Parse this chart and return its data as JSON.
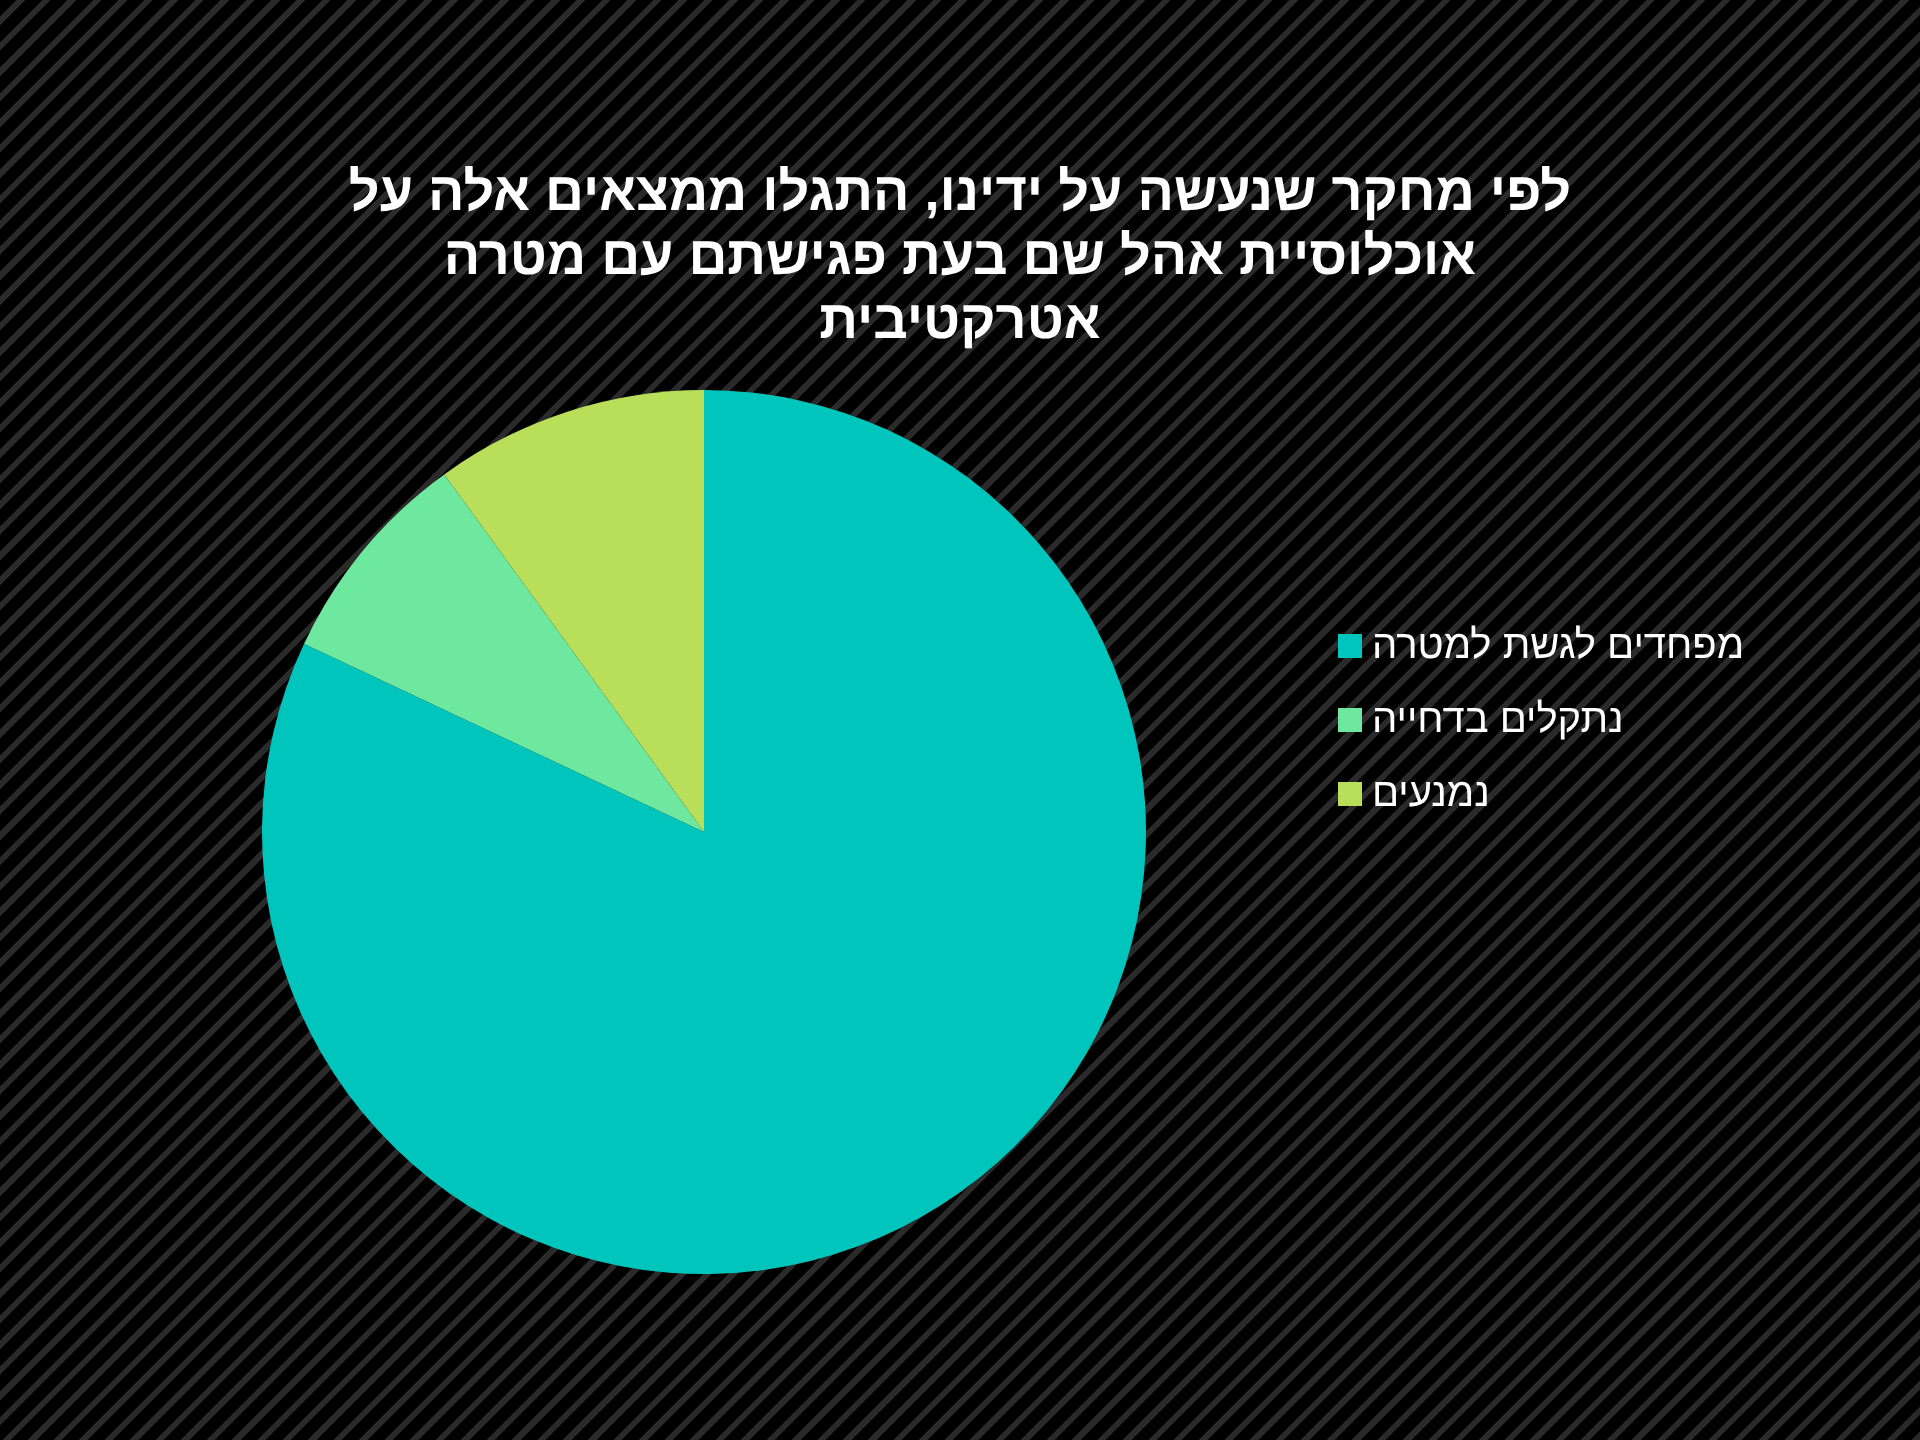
{
  "chart_data": {
    "type": "pie",
    "title": "לפי מחקר שנעשה על ידינו, התגלו ממצאים אלה על אוכלוסיית אהל שם בעת פגישתם עם מטרה אטרקטיבית",
    "categories": [
      "מפחדים לגשת למטרה",
      "נתקלים בדחייה",
      "נמנעים"
    ],
    "values": [
      82,
      8,
      10
    ],
    "colors": [
      "#00c5bd",
      "#6fe89f",
      "#b8de5a"
    ],
    "legend": "right"
  }
}
